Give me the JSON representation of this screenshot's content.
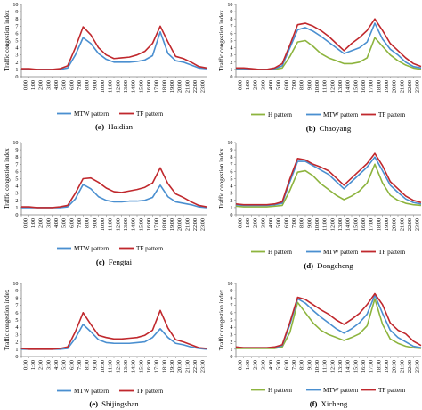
{
  "figure": {
    "hours": [
      "0:00",
      "1:00",
      "2:00",
      "3:00",
      "4:00",
      "5:00",
      "6:00",
      "7:00",
      "8:00",
      "9:00",
      "10:00",
      "11:00",
      "12:00",
      "13:00",
      "14:00",
      "15:00",
      "16:00",
      "17:00",
      "18:00",
      "19:00",
      "20:00",
      "21:00",
      "22:00",
      "23:00"
    ],
    "y_ticks": [
      "0",
      "1",
      "2",
      "3",
      "4",
      "5",
      "6",
      "7",
      "8",
      "9",
      "10"
    ],
    "colors": {
      "H": "#8db43e",
      "MTW": "#4a8fd0",
      "TF": "#c0282d",
      "axis": "#7f7f7f"
    }
  },
  "chart_data": [
    {
      "type": "line",
      "letter": "(a)",
      "caption": "Haidian",
      "ylabel": "Traffic congestion index",
      "ylim": [
        0,
        10
      ],
      "x": [
        "0:00",
        "1:00",
        "2:00",
        "3:00",
        "4:00",
        "5:00",
        "6:00",
        "7:00",
        "8:00",
        "9:00",
        "10:00",
        "11:00",
        "12:00",
        "13:00",
        "14:00",
        "15:00",
        "16:00",
        "17:00",
        "18:00",
        "19:00",
        "20:00",
        "21:00",
        "22:00",
        "23:00",
        "24:00"
      ],
      "series": [
        {
          "key": "MTW",
          "name": "MTW pattern",
          "values": [
            1.0,
            1.0,
            1.0,
            1.0,
            1.0,
            1.0,
            1.2,
            3.0,
            5.4,
            4.6,
            3.2,
            2.4,
            2.0,
            2.0,
            2.0,
            2.1,
            2.3,
            2.9,
            6.2,
            3.2,
            2.2,
            2.0,
            1.6,
            1.2,
            1.1
          ]
        },
        {
          "key": "TF",
          "name": "TF pattern",
          "values": [
            1.1,
            1.1,
            1.0,
            1.0,
            1.0,
            1.1,
            1.5,
            4.0,
            6.9,
            5.8,
            4.0,
            3.0,
            2.5,
            2.6,
            2.7,
            3.0,
            3.5,
            4.6,
            7.0,
            4.8,
            2.8,
            2.5,
            2.0,
            1.4,
            1.2
          ]
        }
      ]
    },
    {
      "type": "line",
      "letter": "(b)",
      "caption": "Chaoyang",
      "ylabel": "Traffic congestion index",
      "ylim": [
        0,
        10
      ],
      "x": [
        "0:00",
        "1:00",
        "2:00",
        "3:00",
        "4:00",
        "5:00",
        "6:00",
        "7:00",
        "8:00",
        "9:00",
        "10:00",
        "11:00",
        "12:00",
        "13:00",
        "14:00",
        "15:00",
        "16:00",
        "17:00",
        "18:00",
        "19:00",
        "20:00",
        "21:00",
        "22:00",
        "23:00",
        "24:00"
      ],
      "series": [
        {
          "key": "H",
          "name": "H pattern",
          "values": [
            1.0,
            1.0,
            1.0,
            1.0,
            1.0,
            1.0,
            1.2,
            2.8,
            4.8,
            5.0,
            4.2,
            3.2,
            2.6,
            2.2,
            1.8,
            1.8,
            2.0,
            2.6,
            5.4,
            4.2,
            3.0,
            2.2,
            1.6,
            1.2,
            1.0
          ]
        },
        {
          "key": "MTW",
          "name": "MTW pattern",
          "values": [
            1.1,
            1.1,
            1.0,
            1.0,
            1.0,
            1.1,
            1.5,
            4.0,
            6.5,
            6.8,
            6.3,
            5.6,
            4.8,
            4.0,
            3.2,
            3.6,
            4.0,
            4.8,
            7.4,
            5.2,
            3.8,
            3.0,
            2.0,
            1.4,
            1.2
          ]
        },
        {
          "key": "TF",
          "name": "TF pattern",
          "values": [
            1.2,
            1.2,
            1.1,
            1.0,
            1.0,
            1.2,
            1.8,
            4.4,
            7.2,
            7.4,
            7.0,
            6.4,
            5.6,
            4.6,
            3.6,
            4.6,
            5.4,
            6.4,
            8.0,
            6.4,
            4.6,
            3.6,
            2.6,
            1.8,
            1.4
          ]
        }
      ]
    },
    {
      "type": "line",
      "letter": "(c)",
      "caption": "Fengtai",
      "ylabel": "Traffic congestion index",
      "ylim": [
        0,
        10
      ],
      "x": [
        "0:00",
        "1:00",
        "2:00",
        "3:00",
        "4:00",
        "5:00",
        "6:00",
        "7:00",
        "8:00",
        "9:00",
        "10:00",
        "11:00",
        "12:00",
        "13:00",
        "14:00",
        "15:00",
        "16:00",
        "17:00",
        "18:00",
        "19:00",
        "20:00",
        "21:00",
        "22:00",
        "23:00",
        "24:00"
      ],
      "series": [
        {
          "key": "MTW",
          "name": "MTW pattern",
          "values": [
            1.0,
            1.0,
            1.0,
            1.0,
            1.0,
            1.0,
            1.1,
            2.2,
            4.2,
            3.6,
            2.5,
            2.0,
            1.8,
            1.8,
            1.9,
            1.9,
            2.0,
            2.4,
            4.1,
            2.5,
            1.8,
            1.6,
            1.4,
            1.1,
            1.0
          ]
        },
        {
          "key": "TF",
          "name": "TF pattern",
          "values": [
            1.1,
            1.1,
            1.0,
            1.0,
            1.0,
            1.1,
            1.3,
            3.0,
            5.0,
            5.1,
            4.5,
            3.7,
            3.2,
            3.1,
            3.3,
            3.5,
            3.8,
            4.4,
            6.5,
            4.3,
            2.9,
            2.4,
            1.8,
            1.3,
            1.1
          ]
        }
      ]
    },
    {
      "type": "line",
      "letter": "(d)",
      "caption": "Dongcheng",
      "ylabel": "Traffic congestion index",
      "ylim": [
        0,
        10
      ],
      "x": [
        "0:00",
        "1:00",
        "2:00",
        "3:00",
        "4:00",
        "5:00",
        "6:00",
        "7:00",
        "8:00",
        "9:00",
        "10:00",
        "11:00",
        "12:00",
        "13:00",
        "14:00",
        "15:00",
        "16:00",
        "17:00",
        "18:00",
        "19:00",
        "20:00",
        "21:00",
        "22:00",
        "23:00",
        "24:00"
      ],
      "series": [
        {
          "key": "H",
          "name": "H pattern",
          "values": [
            1.2,
            1.1,
            1.1,
            1.1,
            1.1,
            1.2,
            1.3,
            3.4,
            5.9,
            6.1,
            5.4,
            4.3,
            3.5,
            2.7,
            2.1,
            2.6,
            3.3,
            4.4,
            7.0,
            4.4,
            2.7,
            2.0,
            1.6,
            1.4,
            1.3
          ]
        },
        {
          "key": "MTW",
          "name": "MTW pattern",
          "values": [
            1.4,
            1.3,
            1.3,
            1.3,
            1.3,
            1.4,
            1.6,
            4.6,
            7.4,
            7.4,
            6.8,
            6.2,
            5.6,
            4.6,
            3.6,
            4.6,
            5.6,
            6.6,
            8.0,
            6.1,
            4.1,
            3.1,
            2.2,
            1.7,
            1.5
          ]
        },
        {
          "key": "TF",
          "name": "TF pattern",
          "values": [
            1.5,
            1.4,
            1.4,
            1.4,
            1.4,
            1.5,
            1.8,
            5.0,
            7.8,
            7.6,
            7.0,
            6.6,
            6.1,
            5.1,
            4.1,
            5.1,
            6.1,
            7.1,
            8.5,
            6.8,
            4.6,
            3.6,
            2.6,
            2.0,
            1.7
          ]
        }
      ]
    },
    {
      "type": "line",
      "letter": "(e)",
      "caption": "Shijingshan",
      "ylabel": "Traffic congestion index",
      "ylim": [
        0,
        10
      ],
      "x": [
        "0:00",
        "1:00",
        "2:00",
        "3:00",
        "4:00",
        "5:00",
        "6:00",
        "7:00",
        "8:00",
        "9:00",
        "10:00",
        "11:00",
        "12:00",
        "13:00",
        "14:00",
        "15:00",
        "16:00",
        "17:00",
        "18:00",
        "19:00",
        "20:00",
        "21:00",
        "22:00",
        "23:00",
        "24:00"
      ],
      "series": [
        {
          "key": "MTW",
          "name": "MTW pattern",
          "values": [
            1.0,
            1.0,
            1.0,
            1.0,
            1.0,
            1.0,
            1.1,
            2.5,
            4.4,
            3.4,
            2.3,
            1.9,
            1.8,
            1.8,
            1.8,
            1.9,
            2.0,
            2.6,
            3.8,
            2.6,
            1.8,
            1.6,
            1.3,
            1.1,
            1.0
          ]
        },
        {
          "key": "TF",
          "name": "TF pattern",
          "values": [
            1.1,
            1.0,
            1.0,
            1.0,
            1.0,
            1.1,
            1.3,
            3.4,
            6.0,
            4.4,
            2.9,
            2.6,
            2.4,
            2.4,
            2.5,
            2.6,
            2.9,
            3.6,
            6.3,
            3.9,
            2.3,
            2.0,
            1.6,
            1.2,
            1.1
          ]
        }
      ]
    },
    {
      "type": "line",
      "letter": "(f)",
      "caption": "Xicheng",
      "ylabel": "Traffic congestion index",
      "ylim": [
        0,
        10
      ],
      "x": [
        "0:00",
        "1:00",
        "2:00",
        "3:00",
        "4:00",
        "5:00",
        "6:00",
        "7:00",
        "8:00",
        "9:00",
        "10:00",
        "11:00",
        "12:00",
        "13:00",
        "14:00",
        "15:00",
        "16:00",
        "17:00",
        "18:00",
        "19:00",
        "20:00",
        "21:00",
        "22:00",
        "23:00",
        "24:00"
      ],
      "series": [
        {
          "key": "H",
          "name": "H pattern",
          "values": [
            1.1,
            1.1,
            1.1,
            1.1,
            1.1,
            1.1,
            1.3,
            3.3,
            7.4,
            6.0,
            4.6,
            3.6,
            3.0,
            2.6,
            2.2,
            2.6,
            3.1,
            4.2,
            7.9,
            4.4,
            2.4,
            1.8,
            1.4,
            1.2,
            1.1
          ]
        },
        {
          "key": "MTW",
          "name": "MTW pattern",
          "values": [
            1.2,
            1.2,
            1.2,
            1.2,
            1.2,
            1.2,
            1.5,
            4.4,
            7.9,
            7.3,
            6.3,
            5.4,
            4.6,
            3.8,
            3.2,
            3.8,
            4.6,
            5.8,
            8.4,
            5.9,
            3.6,
            2.6,
            2.0,
            1.4,
            1.2
          ]
        },
        {
          "key": "TF",
          "name": "TF pattern",
          "values": [
            1.3,
            1.2,
            1.2,
            1.2,
            1.2,
            1.3,
            1.6,
            4.7,
            8.1,
            7.8,
            7.1,
            6.4,
            5.8,
            5.0,
            4.4,
            5.1,
            5.9,
            7.1,
            8.6,
            7.1,
            4.6,
            3.6,
            3.1,
            2.1,
            1.5
          ]
        }
      ]
    }
  ]
}
